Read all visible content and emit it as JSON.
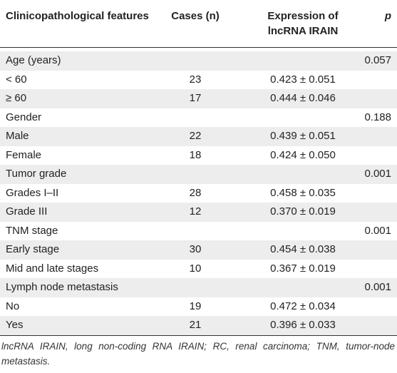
{
  "header": {
    "feature": "Clinicopathological features",
    "cases": "Cases (n)",
    "expression_line1": "Expression of",
    "expression_line2": "lncRNA IRAIN",
    "p": "p"
  },
  "rows": [
    {
      "feature": "Age (years)",
      "cases": "",
      "expression": "",
      "p": "0.057",
      "shaded": true
    },
    {
      "feature": "< 60",
      "cases": "23",
      "expression": "0.423 ± 0.051",
      "p": "",
      "shaded": false
    },
    {
      "feature": "≥ 60",
      "cases": "17",
      "expression": "0.444 ± 0.046",
      "p": "",
      "shaded": true
    },
    {
      "feature": "Gender",
      "cases": "",
      "expression": "",
      "p": "0.188",
      "shaded": false
    },
    {
      "feature": "Male",
      "cases": "22",
      "expression": "0.439 ± 0.051",
      "p": "",
      "shaded": true
    },
    {
      "feature": "Female",
      "cases": "18",
      "expression": "0.424 ± 0.050",
      "p": "",
      "shaded": false
    },
    {
      "feature": "Tumor grade",
      "cases": "",
      "expression": "",
      "p": "0.001",
      "shaded": true
    },
    {
      "feature": "Grades I–II",
      "cases": "28",
      "expression": "0.458 ± 0.035",
      "p": "",
      "shaded": false
    },
    {
      "feature": "Grade III",
      "cases": "12",
      "expression": "0.370 ± 0.019",
      "p": "",
      "shaded": true
    },
    {
      "feature": "TNM stage",
      "cases": "",
      "expression": "",
      "p": "0.001",
      "shaded": false
    },
    {
      "feature": "Early stage",
      "cases": "30",
      "expression": "0.454 ± 0.038",
      "p": "",
      "shaded": true
    },
    {
      "feature": "Mid and late stages",
      "cases": "10",
      "expression": "0.367 ± 0.019",
      "p": "",
      "shaded": false
    },
    {
      "feature": "Lymph node metastasis",
      "cases": "",
      "expression": "",
      "p": "0.001",
      "shaded": true
    },
    {
      "feature": "No",
      "cases": "19",
      "expression": "0.472 ± 0.034",
      "p": "",
      "shaded": false
    },
    {
      "feature": "Yes",
      "cases": "21",
      "expression": "0.396 ± 0.033",
      "p": "",
      "shaded": true
    }
  ],
  "footnote": "lncRNA IRAIN, long non-coding RNA IRAIN; RC, renal carcinoma; TNM, tumor-node metastasis.",
  "colors": {
    "shaded_row": "#ededed",
    "rule": "#333333",
    "text": "#222222"
  }
}
